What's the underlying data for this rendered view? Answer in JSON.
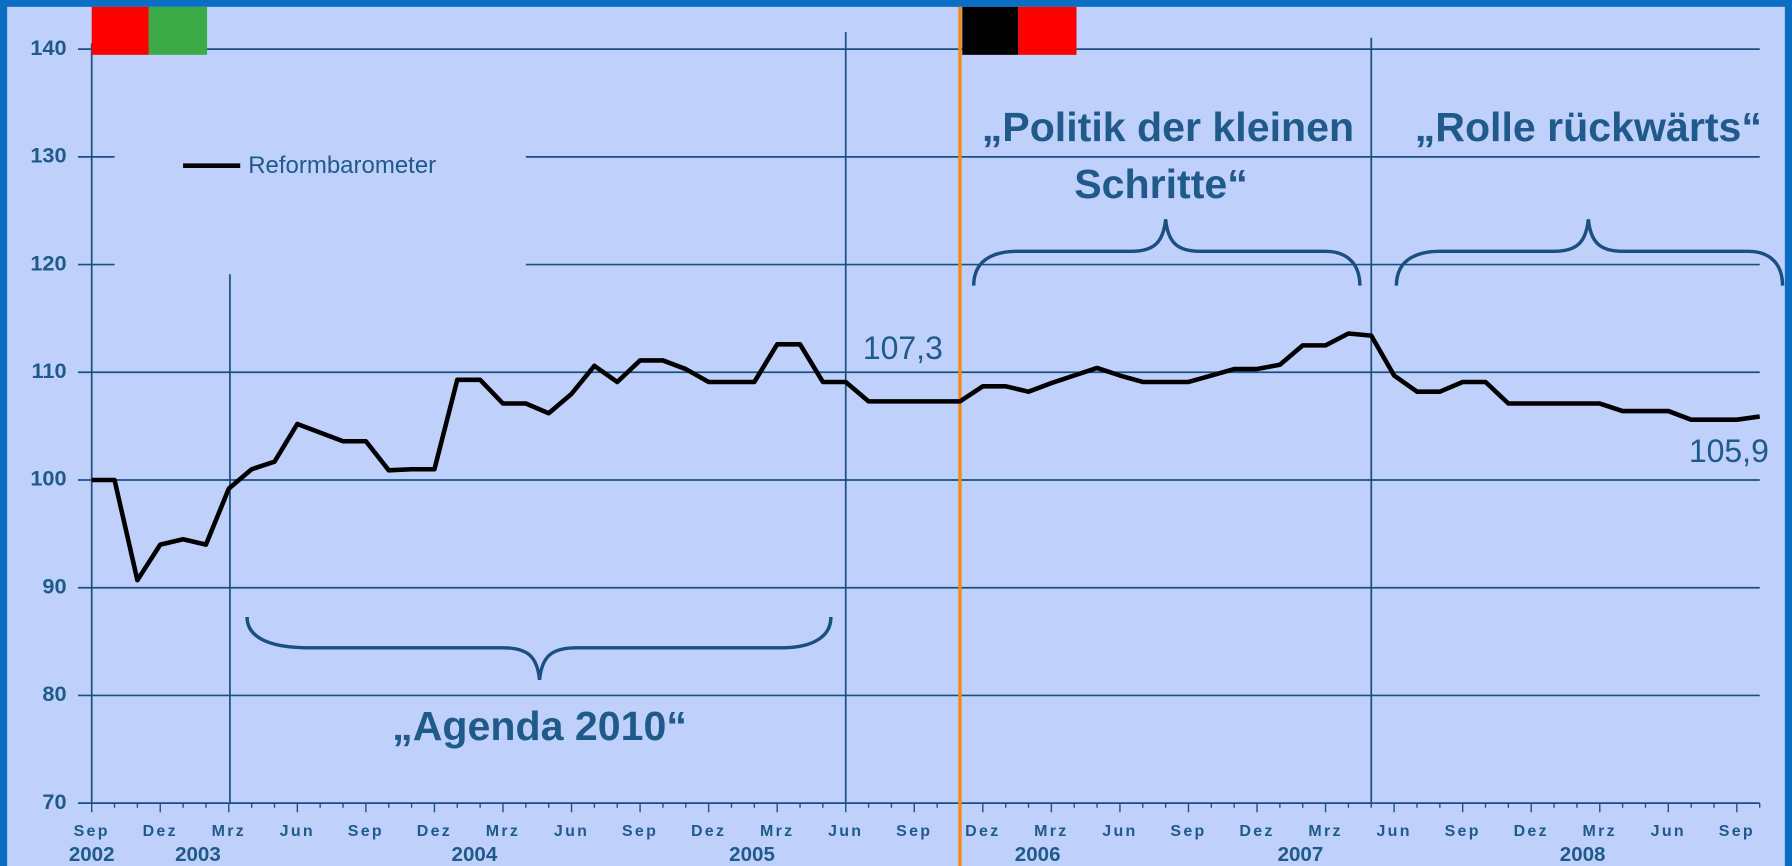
{
  "chart_data": {
    "type": "line",
    "categories": [
      "Sep",
      null,
      null,
      "Dez",
      null,
      null,
      "Mrz",
      null,
      null,
      "Jun",
      null,
      null,
      "Sep",
      null,
      null,
      "Dez",
      null,
      null,
      "Mrz",
      null,
      null,
      "Jun",
      null,
      null,
      "Sep",
      null,
      null,
      "Dez",
      null,
      null,
      "Mrz",
      null,
      null,
      "Jun",
      null,
      null,
      "Sep",
      null,
      null,
      "Dez",
      null,
      null,
      "Mrz",
      null,
      null,
      "Jun",
      null,
      null,
      "Sep",
      null,
      null,
      "Dez",
      null,
      null,
      "Mrz",
      null,
      null,
      "Jun",
      null,
      null,
      "Sep",
      null,
      null,
      "Dez",
      null,
      null,
      "Mrz",
      null,
      null,
      "Jun",
      null,
      null,
      "Sep",
      null
    ],
    "year_labels": [
      "2002",
      "2003",
      "2004",
      "2005",
      "2006",
      "2007",
      "2008"
    ],
    "series": [
      {
        "name": "Reformbarometer",
        "color": "#000000",
        "values": [
          100,
          100,
          90.7,
          94,
          94.5,
          94,
          99.2,
          101,
          101.7,
          105.2,
          104.4,
          103.6,
          103.6,
          100.9,
          101,
          101,
          109.3,
          109.3,
          107.1,
          107.1,
          106.2,
          108,
          110.6,
          109.1,
          111.1,
          111.1,
          110.3,
          109.1,
          109.1,
          109.1,
          112.6,
          112.6,
          109.1,
          109.1,
          107.3,
          107.3,
          107.3,
          107.3,
          107.3,
          108.7,
          108.7,
          108.2,
          109,
          109.7,
          110.4,
          109.7,
          109.1,
          109.1,
          109.1,
          109.7,
          110.3,
          110.3,
          110.7,
          112.5,
          112.5,
          113.6,
          113.4,
          109.7,
          108.2,
          108.2,
          109.1,
          109.1,
          107.1,
          107.1,
          107.1,
          107.1,
          107.1,
          106.4,
          106.4,
          106.4,
          105.6,
          105.6,
          105.6,
          105.9
        ]
      }
    ],
    "ylim": [
      70,
      140
    ],
    "yticks": [
      70,
      80,
      90,
      100,
      110,
      120,
      130,
      140
    ],
    "grid": true,
    "annotations": {
      "value_2005": "107,3",
      "value_2008": "105,9",
      "agenda": "„Agenda 2010“",
      "politik_1": "„Politik der kleinen",
      "politik_2": "Schritte“",
      "rolle": "„Rolle rückwärts“"
    },
    "legend": "upper left"
  }
}
